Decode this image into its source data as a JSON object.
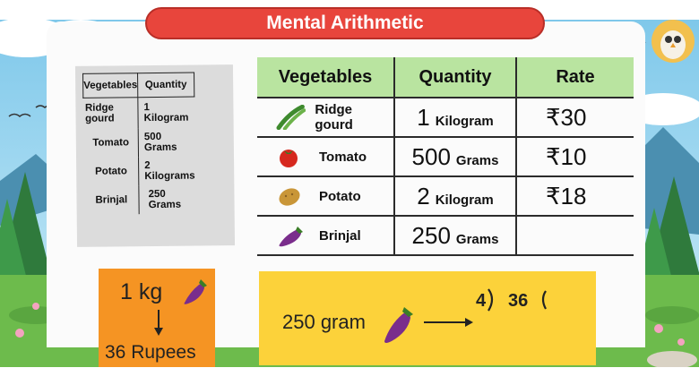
{
  "title": "Mental Arithmetic",
  "paper_table": {
    "headers": [
      "Vegetables",
      "Quantity"
    ],
    "rows": [
      [
        "Ridge gourd",
        "1 Kilogram"
      ],
      [
        "Tomato",
        "500 Grams"
      ],
      [
        "Potato",
        "2 Kilograms"
      ],
      [
        "Brinjal",
        "250 Grams"
      ]
    ]
  },
  "main_table": {
    "headers": [
      "Vegetables",
      "Quantity",
      "Rate"
    ],
    "rows": [
      {
        "vegetable": "Ridge gourd",
        "icon": "ridge-gourd-icon",
        "qty_num": "1",
        "qty_unit": "Kilogram",
        "rate": "₹30"
      },
      {
        "vegetable": "Tomato",
        "icon": "tomato-icon",
        "qty_num": "500",
        "qty_unit": "Grams",
        "rate": "₹10"
      },
      {
        "vegetable": "Potato",
        "icon": "potato-icon",
        "qty_num": "2",
        "qty_unit": "Kilogram",
        "rate": "₹18"
      },
      {
        "vegetable": "Brinjal",
        "icon": "brinjal-icon",
        "qty_num": "250",
        "qty_unit": "Grams",
        "rate": ""
      }
    ],
    "header_color": "#b9e4a0"
  },
  "orange_box": {
    "top_text": "1 kg",
    "bottom_text": "36  Rupees",
    "color": "#f59423"
  },
  "yellow_box": {
    "left_text": "250 gram",
    "divisor": "4",
    "dividend": "36",
    "color": "#fcd23a"
  },
  "title_color": "#e8453c"
}
